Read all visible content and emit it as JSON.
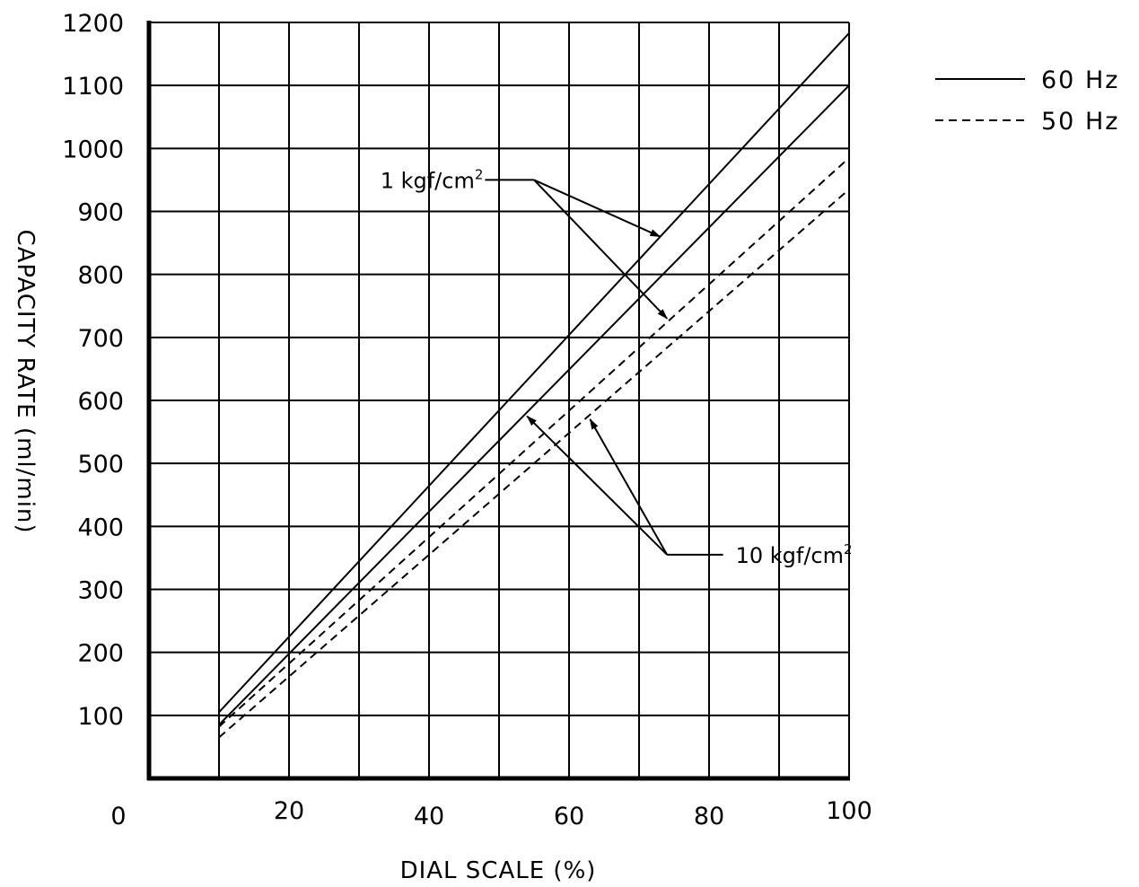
{
  "chart_data": {
    "type": "line",
    "title": "",
    "xlabel": "DIAL SCALE (%)",
    "ylabel": "CAPACITY RATE (ml/min)",
    "xlim": [
      0,
      100
    ],
    "ylim": [
      0,
      1200
    ],
    "x_ticks": [
      0,
      20,
      40,
      60,
      80,
      100
    ],
    "y_ticks": [
      100,
      200,
      300,
      400,
      500,
      600,
      700,
      800,
      900,
      1000,
      1100,
      1200
    ],
    "grid": true,
    "grid_x_step": 10,
    "grid_y_step": 100,
    "legend": {
      "placement": "top-right, outside",
      "entries": [
        {
          "label": "60 Hz",
          "style": "solid"
        },
        {
          "label": "50 Hz",
          "style": "dashed"
        }
      ]
    },
    "series": [
      {
        "pressure": "1 kgf/cm²",
        "frequency": "60 Hz",
        "style": "solid",
        "x": [
          10,
          100
        ],
        "y": [
          105,
          1183
        ]
      },
      {
        "pressure": "10 kgf/cm²",
        "frequency": "60 Hz",
        "style": "solid",
        "x": [
          10,
          100
        ],
        "y": [
          85,
          1100
        ]
      },
      {
        "pressure": "1 kgf/cm²",
        "frequency": "50 Hz",
        "style": "dashed",
        "x": [
          10,
          100
        ],
        "y": [
          82,
          985
        ]
      },
      {
        "pressure": "10 kgf/cm²",
        "frequency": "50 Hz",
        "style": "dashed",
        "x": [
          10,
          100
        ],
        "y": [
          65,
          935
        ]
      }
    ],
    "annotations": [
      {
        "text": "1 kgf/cm",
        "sup": "2",
        "label_anchor": [
          48,
          950
        ],
        "knee": [
          55,
          950
        ],
        "arrow_tips": [
          [
            73,
            860
          ],
          [
            74,
            730
          ]
        ]
      },
      {
        "text": "10 kgf/cm",
        "sup": "2",
        "label_anchor": [
          82,
          355
        ],
        "knee": [
          74,
          355
        ],
        "arrow_tips": [
          [
            54,
            575
          ],
          [
            63,
            570
          ]
        ]
      }
    ]
  }
}
